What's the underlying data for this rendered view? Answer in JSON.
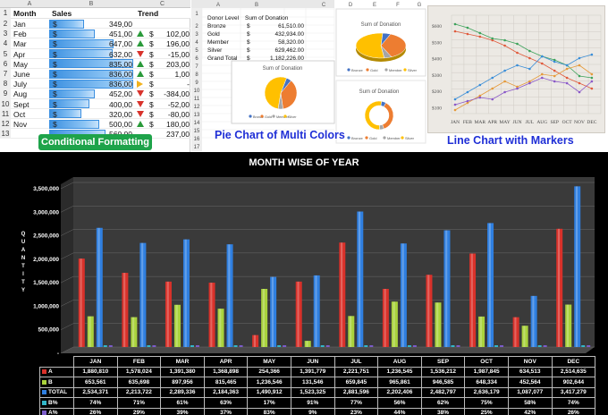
{
  "excel": {
    "col_headers": [
      "A",
      "B",
      "C"
    ],
    "header": {
      "month": "Month",
      "sales": "Sales",
      "trend": "Trend"
    },
    "rows": [
      {
        "n": "2",
        "month": "Jan",
        "cur": "$",
        "sales": "349,00",
        "sales_fill": 0.42,
        "trend_dir": "none",
        "tcur": "",
        "trend": ""
      },
      {
        "n": "3",
        "month": "Feb",
        "cur": "$",
        "sales": "451,00",
        "sales_fill": 0.54,
        "trend_dir": "up",
        "tcur": "$",
        "trend": "102,00"
      },
      {
        "n": "4",
        "month": "Mar",
        "cur": "$",
        "sales": "647,00",
        "sales_fill": 0.77,
        "trend_dir": "up",
        "tcur": "$",
        "trend": "196,00"
      },
      {
        "n": "5",
        "month": "Apr",
        "cur": "$",
        "sales": "632,00",
        "sales_fill": 0.76,
        "trend_dir": "down",
        "tcur": "$",
        "trend": "-15,00"
      },
      {
        "n": "6",
        "month": "May",
        "cur": "$",
        "sales": "835,00",
        "sales_fill": 1.0,
        "trend_dir": "up",
        "tcur": "$",
        "trend": "203,00"
      },
      {
        "n": "7",
        "month": "June",
        "cur": "$",
        "sales": "836,00",
        "sales_fill": 1.0,
        "trend_dir": "up",
        "tcur": "$",
        "trend": "1,00"
      },
      {
        "n": "8",
        "month": "July",
        "cur": "$",
        "sales": "836,00",
        "sales_fill": 1.0,
        "trend_dir": "right",
        "tcur": "$",
        "trend": "-"
      },
      {
        "n": "9",
        "month": "Aug",
        "cur": "$",
        "sales": "452,00",
        "sales_fill": 0.54,
        "trend_dir": "down",
        "tcur": "$",
        "trend": "-384,00"
      },
      {
        "n": "10",
        "month": "Sept",
        "cur": "$",
        "sales": "400,00",
        "sales_fill": 0.48,
        "trend_dir": "down",
        "tcur": "$",
        "trend": "-52,00"
      },
      {
        "n": "11",
        "month": "Oct",
        "cur": "$",
        "sales": "320,00",
        "sales_fill": 0.38,
        "trend_dir": "down",
        "tcur": "$",
        "trend": "-80,00"
      },
      {
        "n": "12",
        "month": "Nov",
        "cur": "$",
        "sales": "500,00",
        "sales_fill": 0.6,
        "trend_dir": "up",
        "tcur": "$",
        "trend": "180,00"
      },
      {
        "n": "13",
        "month": "",
        "cur": "",
        "sales": "560,00",
        "sales_fill": 0.67,
        "trend_dir": "none",
        "tcur": "",
        "trend": "237,00"
      }
    ],
    "badge": "Conditional Formatting"
  },
  "pie_section": {
    "col_headers": [
      "A",
      "B",
      "C",
      "D",
      "E",
      "F",
      "G"
    ],
    "table_header": {
      "level": "Donor Level",
      "sum": "Sum of Donation"
    },
    "table_rows": [
      {
        "n": "2",
        "level": "Bronze",
        "cur": "$",
        "value": "61,510.00"
      },
      {
        "n": "3",
        "level": "Gold",
        "cur": "$",
        "value": "432,934.00"
      },
      {
        "n": "4",
        "level": "Member",
        "cur": "$",
        "value": "58,320.00"
      },
      {
        "n": "5",
        "level": "Silver",
        "cur": "$",
        "value": "629,462.00"
      },
      {
        "n": "6",
        "level": "Grand Total",
        "cur": "$",
        "value": "1,182,226.00"
      }
    ],
    "extra_row_numbers": [
      "1",
      "7",
      "8",
      "9",
      "10",
      "11",
      "12",
      "13",
      "14",
      "15",
      "16",
      "17"
    ],
    "chart_title": "Sum of Donation",
    "legend": [
      "Bronze",
      "Gold",
      "Member",
      "Silver"
    ],
    "caption": "Pie  Chart of Multi Colors",
    "colors": {
      "bronze": "#4472c4",
      "gold": "#ed7d31",
      "member": "#a5a5a5",
      "silver": "#ffc000"
    }
  },
  "line_section": {
    "y_ticks": [
      "$600",
      "$500",
      "$400",
      "$300",
      "$200",
      "$100"
    ],
    "x_ticks": [
      "JAN",
      "FEB",
      "MAR",
      "APR",
      "MAY",
      "JUN",
      "JUL",
      "AUG",
      "SEP",
      "OCT",
      "NOV",
      "DEC"
    ],
    "caption": "Line Chart with Markers"
  },
  "chart_data": {
    "type": "bar",
    "title": "MONTH WISE OF YEAR",
    "ylabel": "QUANTITY",
    "ylim": [
      0,
      3500000
    ],
    "y_ticks": [
      "3,500,000",
      "3,000,000",
      "2,500,000",
      "2,000,000",
      "1,500,000",
      "1,000,000",
      "500,000",
      "-"
    ],
    "categories": [
      "JAN",
      "FEB",
      "MAR",
      "APR",
      "MAY",
      "JUN",
      "JUL",
      "AUG",
      "SEP",
      "OCT",
      "NOV",
      "DEC"
    ],
    "series": [
      {
        "name": "A",
        "color": "#d9312a",
        "values": [
          1880810,
          1578024,
          1391380,
          1368898,
          254366,
          1391779,
          2221751,
          1236545,
          1536212,
          1987845,
          634513,
          2514635
        ],
        "labels": [
          "1,880,810",
          "1,578,024",
          "1,391,380",
          "1,368,898",
          "254,366",
          "1,391,779",
          "2,221,751",
          "1,236,545",
          "1,536,212",
          "1,987,845",
          "634,513",
          "2,514,635"
        ]
      },
      {
        "name": "B",
        "color": "#a9d23c",
        "values": [
          653561,
          635698,
          897956,
          815465,
          1236546,
          131546,
          659845,
          965861,
          946585,
          648334,
          452564,
          902644
        ],
        "labels": [
          "653,561",
          "635,698",
          "897,956",
          "815,465",
          "1,236,546",
          "131,546",
          "659,845",
          "965,861",
          "946,585",
          "648,334",
          "452,564",
          "902,644"
        ]
      },
      {
        "name": "TOTAL",
        "color": "#2f7fe0",
        "values": [
          2534371,
          2213722,
          2289336,
          2184363,
          1490912,
          1523325,
          2881596,
          2202406,
          2482797,
          2636179,
          1087077,
          3417279
        ],
        "labels": [
          "2,534,371",
          "2,213,722",
          "2,289,336",
          "2,184,363",
          "1,490,912",
          "1,523,325",
          "2,881,596",
          "2,202,406",
          "2,482,797",
          "2,636,179",
          "1,087,077",
          "3,417,279"
        ]
      },
      {
        "name": "B%",
        "color": "#33b7c9",
        "values": [
          0.74,
          0.71,
          0.61,
          0.63,
          0.17,
          0.91,
          0.77,
          0.56,
          0.62,
          0.75,
          0.58,
          0.74
        ],
        "labels": [
          "74%",
          "71%",
          "61%",
          "63%",
          "17%",
          "91%",
          "77%",
          "56%",
          "62%",
          "75%",
          "58%",
          "74%"
        ]
      },
      {
        "name": "A%",
        "color": "#7b5cc9",
        "values": [
          0.26,
          0.29,
          0.39,
          0.37,
          0.83,
          0.09,
          0.23,
          0.44,
          0.38,
          0.25,
          0.42,
          0.26
        ],
        "labels": [
          "26%",
          "29%",
          "39%",
          "37%",
          "83%",
          "9%",
          "23%",
          "44%",
          "38%",
          "25%",
          "42%",
          "26%"
        ]
      }
    ]
  }
}
